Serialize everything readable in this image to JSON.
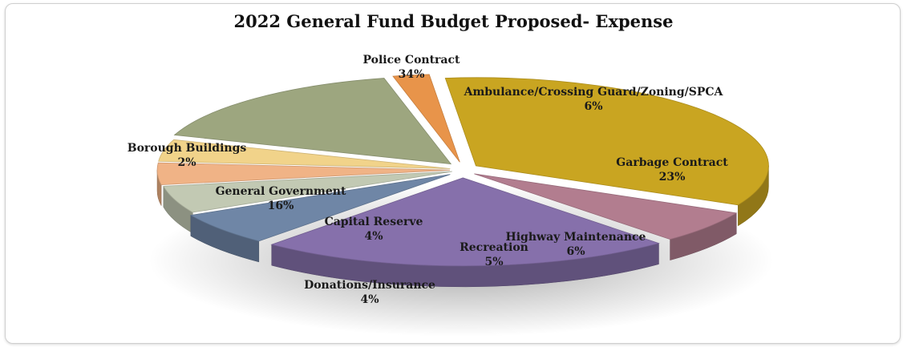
{
  "chart_data": {
    "type": "pie",
    "title": "2022 General Fund Budget Proposed- Expense",
    "slices": [
      {
        "label": "Police Contract",
        "pct_label": "34%",
        "value": 34,
        "color": "#c9a521"
      },
      {
        "label": "Ambulance/Crossing Guard/Zoning/SPCA",
        "pct_label": "6%",
        "value": 6,
        "color": "#b27d8f"
      },
      {
        "label": "Garbage Contract",
        "pct_label": "23%",
        "value": 23,
        "color": "#8670ab"
      },
      {
        "label": "Highway Maintenance",
        "pct_label": "6%",
        "value": 6,
        "color": "#6f86a6"
      },
      {
        "label": "Recreation",
        "pct_label": "5%",
        "value": 5,
        "color": "#c2c9b3"
      },
      {
        "label": "Donations/Insurance",
        "pct_label": "4%",
        "value": 4,
        "color": "#f0b386"
      },
      {
        "label": "Capital Reserve",
        "pct_label": "4%",
        "value": 4,
        "color": "#f1d38a"
      },
      {
        "label": "General Government",
        "pct_label": "16%",
        "value": 16,
        "color": "#9da67f"
      },
      {
        "label": "Borough Buildings",
        "pct_label": "2%",
        "value": 2,
        "color": "#e8944a"
      }
    ]
  }
}
